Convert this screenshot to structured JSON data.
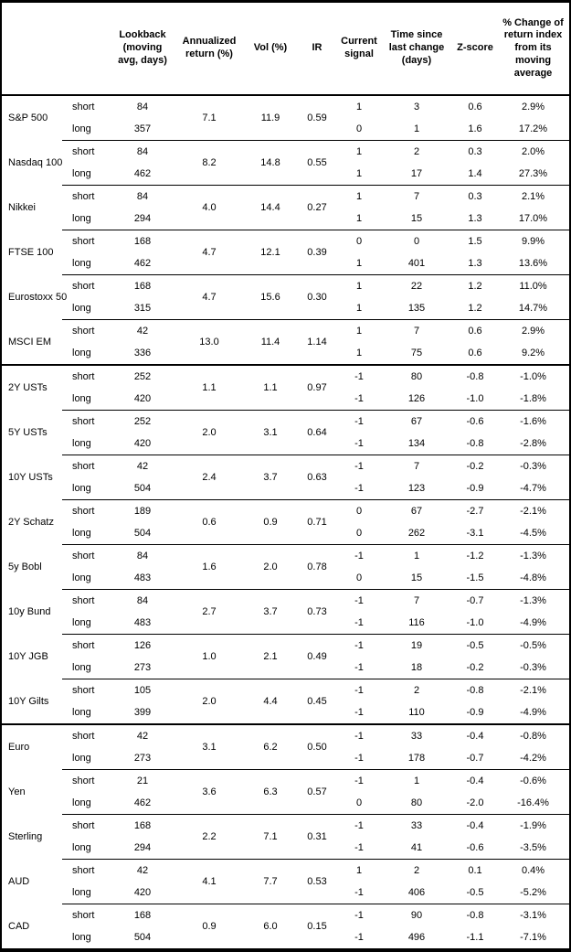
{
  "header": {
    "instrument": "",
    "horizon": "",
    "lookback": "Lookback (moving avg, days)",
    "annualized_return": "Annualized return (%)",
    "vol": "Vol (%)",
    "ir": "IR",
    "current_signal": "Current signal",
    "time_since": "Time since last change (days)",
    "z_score": "Z-score",
    "pct_change": "% Change of return index from its moving average"
  },
  "groups": [
    {
      "instruments": [
        {
          "name": "S&P 500",
          "annualized_return": "7.1",
          "vol": "11.9",
          "ir": "0.59",
          "rows": [
            {
              "horizon": "short",
              "lookback": "84",
              "signal": "1",
              "time_since": "3",
              "z_score": "0.6",
              "pct_change": "2.9%"
            },
            {
              "horizon": "long",
              "lookback": "357",
              "signal": "0",
              "time_since": "1",
              "z_score": "1.6",
              "pct_change": "17.2%"
            }
          ]
        },
        {
          "name": "Nasdaq 100",
          "annualized_return": "8.2",
          "vol": "14.8",
          "ir": "0.55",
          "rows": [
            {
              "horizon": "short",
              "lookback": "84",
              "signal": "1",
              "time_since": "2",
              "z_score": "0.3",
              "pct_change": "2.0%"
            },
            {
              "horizon": "long",
              "lookback": "462",
              "signal": "1",
              "time_since": "17",
              "z_score": "1.4",
              "pct_change": "27.3%"
            }
          ]
        },
        {
          "name": "Nikkei",
          "annualized_return": "4.0",
          "vol": "14.4",
          "ir": "0.27",
          "rows": [
            {
              "horizon": "short",
              "lookback": "84",
              "signal": "1",
              "time_since": "7",
              "z_score": "0.3",
              "pct_change": "2.1%"
            },
            {
              "horizon": "long",
              "lookback": "294",
              "signal": "1",
              "time_since": "15",
              "z_score": "1.3",
              "pct_change": "17.0%"
            }
          ]
        },
        {
          "name": "FTSE 100",
          "annualized_return": "4.7",
          "vol": "12.1",
          "ir": "0.39",
          "rows": [
            {
              "horizon": "short",
              "lookback": "168",
              "signal": "0",
              "time_since": "0",
              "z_score": "1.5",
              "pct_change": "9.9%"
            },
            {
              "horizon": "long",
              "lookback": "462",
              "signal": "1",
              "time_since": "401",
              "z_score": "1.3",
              "pct_change": "13.6%"
            }
          ]
        },
        {
          "name": "Eurostoxx 50",
          "annualized_return": "4.7",
          "vol": "15.6",
          "ir": "0.30",
          "rows": [
            {
              "horizon": "short",
              "lookback": "168",
              "signal": "1",
              "time_since": "22",
              "z_score": "1.2",
              "pct_change": "11.0%"
            },
            {
              "horizon": "long",
              "lookback": "315",
              "signal": "1",
              "time_since": "135",
              "z_score": "1.2",
              "pct_change": "14.7%"
            }
          ]
        },
        {
          "name": "MSCI EM",
          "annualized_return": "13.0",
          "vol": "11.4",
          "ir": "1.14",
          "rows": [
            {
              "horizon": "short",
              "lookback": "42",
              "signal": "1",
              "time_since": "7",
              "z_score": "0.6",
              "pct_change": "2.9%"
            },
            {
              "horizon": "long",
              "lookback": "336",
              "signal": "1",
              "time_since": "75",
              "z_score": "0.6",
              "pct_change": "9.2%"
            }
          ]
        }
      ]
    },
    {
      "instruments": [
        {
          "name": "2Y USTs",
          "annualized_return": "1.1",
          "vol": "1.1",
          "ir": "0.97",
          "rows": [
            {
              "horizon": "short",
              "lookback": "252",
              "signal": "-1",
              "time_since": "80",
              "z_score": "-0.8",
              "pct_change": "-1.0%"
            },
            {
              "horizon": "long",
              "lookback": "420",
              "signal": "-1",
              "time_since": "126",
              "z_score": "-1.0",
              "pct_change": "-1.8%"
            }
          ]
        },
        {
          "name": "5Y USTs",
          "annualized_return": "2.0",
          "vol": "3.1",
          "ir": "0.64",
          "rows": [
            {
              "horizon": "short",
              "lookback": "252",
              "signal": "-1",
              "time_since": "67",
              "z_score": "-0.6",
              "pct_change": "-1.6%"
            },
            {
              "horizon": "long",
              "lookback": "420",
              "signal": "-1",
              "time_since": "134",
              "z_score": "-0.8",
              "pct_change": "-2.8%"
            }
          ]
        },
        {
          "name": "10Y USTs",
          "annualized_return": "2.4",
          "vol": "3.7",
          "ir": "0.63",
          "rows": [
            {
              "horizon": "short",
              "lookback": "42",
              "signal": "-1",
              "time_since": "7",
              "z_score": "-0.2",
              "pct_change": "-0.3%"
            },
            {
              "horizon": "long",
              "lookback": "504",
              "signal": "-1",
              "time_since": "123",
              "z_score": "-0.9",
              "pct_change": "-4.7%"
            }
          ]
        },
        {
          "name": "2Y Schatz",
          "annualized_return": "0.6",
          "vol": "0.9",
          "ir": "0.71",
          "rows": [
            {
              "horizon": "short",
              "lookback": "189",
              "signal": "0",
              "time_since": "67",
              "z_score": "-2.7",
              "pct_change": "-2.1%"
            },
            {
              "horizon": "long",
              "lookback": "504",
              "signal": "0",
              "time_since": "262",
              "z_score": "-3.1",
              "pct_change": "-4.5%"
            }
          ]
        },
        {
          "name": "5y Bobl",
          "annualized_return": "1.6",
          "vol": "2.0",
          "ir": "0.78",
          "rows": [
            {
              "horizon": "short",
              "lookback": "84",
              "signal": "-1",
              "time_since": "1",
              "z_score": "-1.2",
              "pct_change": "-1.3%"
            },
            {
              "horizon": "long",
              "lookback": "483",
              "signal": "0",
              "time_since": "15",
              "z_score": "-1.5",
              "pct_change": "-4.8%"
            }
          ]
        },
        {
          "name": "10y Bund",
          "annualized_return": "2.7",
          "vol": "3.7",
          "ir": "0.73",
          "rows": [
            {
              "horizon": "short",
              "lookback": "84",
              "signal": "-1",
              "time_since": "7",
              "z_score": "-0.7",
              "pct_change": "-1.3%"
            },
            {
              "horizon": "long",
              "lookback": "483",
              "signal": "-1",
              "time_since": "116",
              "z_score": "-1.0",
              "pct_change": "-4.9%"
            }
          ]
        },
        {
          "name": "10Y JGB",
          "annualized_return": "1.0",
          "vol": "2.1",
          "ir": "0.49",
          "rows": [
            {
              "horizon": "short",
              "lookback": "126",
              "signal": "-1",
              "time_since": "19",
              "z_score": "-0.5",
              "pct_change": "-0.5%"
            },
            {
              "horizon": "long",
              "lookback": "273",
              "signal": "-1",
              "time_since": "18",
              "z_score": "-0.2",
              "pct_change": "-0.3%"
            }
          ]
        },
        {
          "name": "10Y Gilts",
          "annualized_return": "2.0",
          "vol": "4.4",
          "ir": "0.45",
          "rows": [
            {
              "horizon": "short",
              "lookback": "105",
              "signal": "-1",
              "time_since": "2",
              "z_score": "-0.8",
              "pct_change": "-2.1%"
            },
            {
              "horizon": "long",
              "lookback": "399",
              "signal": "-1",
              "time_since": "110",
              "z_score": "-0.9",
              "pct_change": "-4.9%"
            }
          ]
        }
      ]
    },
    {
      "instruments": [
        {
          "name": "Euro",
          "annualized_return": "3.1",
          "vol": "6.2",
          "ir": "0.50",
          "rows": [
            {
              "horizon": "short",
              "lookback": "42",
              "signal": "-1",
              "time_since": "33",
              "z_score": "-0.4",
              "pct_change": "-0.8%"
            },
            {
              "horizon": "long",
              "lookback": "273",
              "signal": "-1",
              "time_since": "178",
              "z_score": "-0.7",
              "pct_change": "-4.2%"
            }
          ]
        },
        {
          "name": "Yen",
          "annualized_return": "3.6",
          "vol": "6.3",
          "ir": "0.57",
          "rows": [
            {
              "horizon": "short",
              "lookback": "21",
              "signal": "-1",
              "time_since": "1",
              "z_score": "-0.4",
              "pct_change": "-0.6%"
            },
            {
              "horizon": "long",
              "lookback": "462",
              "signal": "0",
              "time_since": "80",
              "z_score": "-2.0",
              "pct_change": "-16.4%"
            }
          ]
        },
        {
          "name": "Sterling",
          "annualized_return": "2.2",
          "vol": "7.1",
          "ir": "0.31",
          "rows": [
            {
              "horizon": "short",
              "lookback": "168",
              "signal": "-1",
              "time_since": "33",
              "z_score": "-0.4",
              "pct_change": "-1.9%"
            },
            {
              "horizon": "long",
              "lookback": "294",
              "signal": "-1",
              "time_since": "41",
              "z_score": "-0.6",
              "pct_change": "-3.5%"
            }
          ]
        },
        {
          "name": "AUD",
          "annualized_return": "4.1",
          "vol": "7.7",
          "ir": "0.53",
          "rows": [
            {
              "horizon": "short",
              "lookback": "42",
              "signal": "1",
              "time_since": "2",
              "z_score": "0.1",
              "pct_change": "0.4%"
            },
            {
              "horizon": "long",
              "lookback": "420",
              "signal": "-1",
              "time_since": "406",
              "z_score": "-0.5",
              "pct_change": "-5.2%"
            }
          ]
        },
        {
          "name": "CAD",
          "annualized_return": "0.9",
          "vol": "6.0",
          "ir": "0.15",
          "rows": [
            {
              "horizon": "short",
              "lookback": "168",
              "signal": "-1",
              "time_since": "90",
              "z_score": "-0.8",
              "pct_change": "-3.1%"
            },
            {
              "horizon": "long",
              "lookback": "504",
              "signal": "-1",
              "time_since": "496",
              "z_score": "-1.1",
              "pct_change": "-7.1%"
            }
          ]
        }
      ]
    }
  ]
}
